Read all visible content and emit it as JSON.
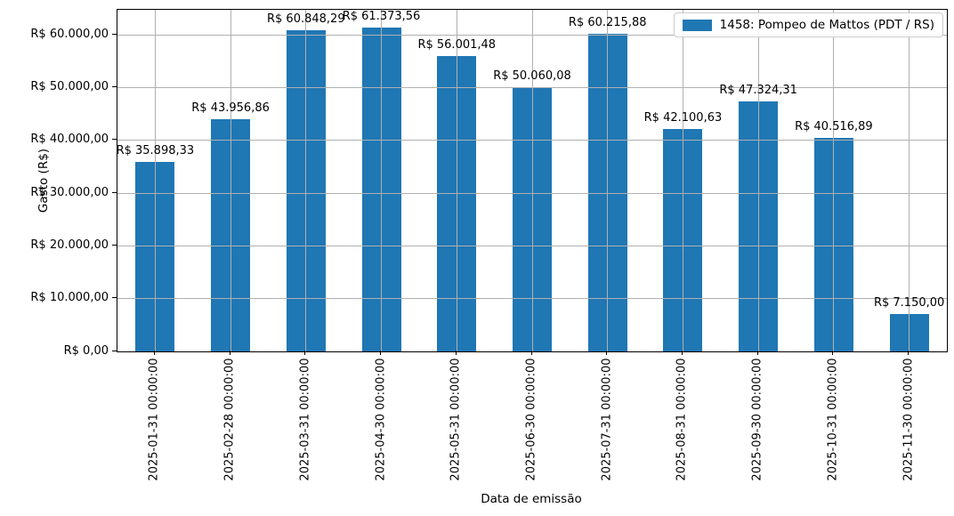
{
  "chart_data": {
    "type": "bar",
    "title": "",
    "xlabel": "Data de emissão",
    "ylabel": "Gasto (R$)",
    "legend": {
      "label": "1458: Pompeo de Mattos (PDT / RS)",
      "color": "#1f77b4",
      "position": "upper right"
    },
    "categories": [
      "2025-01-31 00:00:00",
      "2025-02-28 00:00:00",
      "2025-03-31 00:00:00",
      "2025-04-30 00:00:00",
      "2025-05-31 00:00:00",
      "2025-06-30 00:00:00",
      "2025-07-31 00:00:00",
      "2025-08-31 00:00:00",
      "2025-09-30 00:00:00",
      "2025-10-31 00:00:00",
      "2025-11-30 00:00:00"
    ],
    "values": [
      35898.33,
      43956.86,
      60848.29,
      61373.56,
      56001.48,
      50060.08,
      60215.88,
      42100.63,
      47324.31,
      40516.89,
      7150.0
    ],
    "value_labels": [
      "R$ 35.898,33",
      "R$ 43.956,86",
      "R$ 60.848,29",
      "R$ 61.373,56",
      "R$ 56.001,48",
      "R$ 50.060,08",
      "R$ 60.215,88",
      "R$ 42.100,63",
      "R$ 47.324,31",
      "R$ 40.516,89",
      "R$ 7.150,00"
    ],
    "ylim": [
      0,
      64780
    ],
    "yticks": {
      "values": [
        0,
        10000,
        20000,
        30000,
        40000,
        50000,
        60000
      ],
      "labels": [
        "R$ 0,00",
        "R$ 10.000,00",
        "R$ 20.000,00",
        "R$ 30.000,00",
        "R$ 40.000,00",
        "R$ 50.000,00",
        "R$ 60.000,00"
      ]
    },
    "grid": true,
    "colors": {
      "bar": "#1f77b4",
      "grid": "#b0b0b0",
      "spine": "#000000",
      "text": "#000000"
    }
  }
}
